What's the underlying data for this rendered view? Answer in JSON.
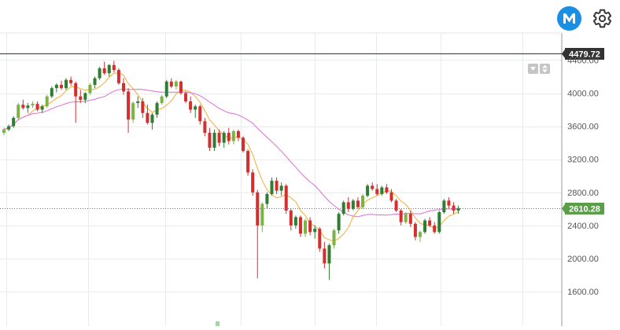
{
  "chart_data": {
    "type": "candlestick",
    "y_axis": {
      "ticks": [
        1600,
        2000,
        2400,
        2800,
        3200,
        3600,
        4000,
        4400
      ],
      "tick_labels": [
        "1600.00",
        "2000.00",
        "2400.00",
        "2800.00",
        "3200.00",
        "3600.00",
        "4000.00",
        "4400.00"
      ],
      "ylim": [
        1540,
        4640
      ],
      "position": "right"
    },
    "grid": true,
    "price_lines": [
      {
        "label": "4479.72",
        "value": 4479.72,
        "style": "solid",
        "color": "#333333",
        "badge_color": "#333333"
      },
      {
        "label": "2610.28",
        "value": 2610.28,
        "style": "dotted",
        "color": "#3c9a3c",
        "badge_color": "#5a9e48"
      }
    ],
    "colors": {
      "up": "#2e7d32",
      "up_light": "#7cb342",
      "down": "#d32f2f",
      "ma_fast": "#f5b342",
      "ma_slow": "#e07ad8"
    },
    "candles": [
      [
        3520,
        3580,
        3490,
        3560
      ],
      [
        3560,
        3620,
        3540,
        3600
      ],
      [
        3600,
        3720,
        3580,
        3700
      ],
      [
        3700,
        3880,
        3680,
        3860
      ],
      [
        3860,
        3920,
        3800,
        3820
      ],
      [
        3820,
        3880,
        3760,
        3850
      ],
      [
        3850,
        3900,
        3820,
        3870
      ],
      [
        3870,
        3900,
        3780,
        3800
      ],
      [
        3800,
        3860,
        3760,
        3840
      ],
      [
        3840,
        3980,
        3820,
        3960
      ],
      [
        3960,
        4080,
        3940,
        4060
      ],
      [
        4060,
        4120,
        4010,
        4100
      ],
      [
        4100,
        4150,
        4040,
        4060
      ],
      [
        4060,
        4180,
        4040,
        4160
      ],
      [
        4160,
        4200,
        4090,
        4120
      ],
      [
        4120,
        4140,
        3640,
        3960
      ],
      [
        3960,
        4040,
        3880,
        3920
      ],
      [
        3920,
        4010,
        3880,
        4000
      ],
      [
        4000,
        4120,
        3980,
        4100
      ],
      [
        4100,
        4200,
        4060,
        4180
      ],
      [
        4180,
        4320,
        4160,
        4300
      ],
      [
        4300,
        4380,
        4220,
        4240
      ],
      [
        4240,
        4350,
        4200,
        4340
      ],
      [
        4340,
        4390,
        4250,
        4280
      ],
      [
        4280,
        4300,
        4100,
        4120
      ],
      [
        4120,
        4180,
        3980,
        4020
      ],
      [
        4020,
        4060,
        3520,
        3680
      ],
      [
        3680,
        3900,
        3640,
        3880
      ],
      [
        3880,
        3960,
        3820,
        3900
      ],
      [
        3900,
        3940,
        3700,
        3760
      ],
      [
        3760,
        3860,
        3620,
        3640
      ],
      [
        3640,
        3760,
        3560,
        3740
      ],
      [
        3740,
        3900,
        3700,
        3880
      ],
      [
        3880,
        3980,
        3860,
        3960
      ],
      [
        3960,
        4160,
        3940,
        4140
      ],
      [
        4140,
        4180,
        4060,
        4080
      ],
      [
        4080,
        4160,
        4040,
        4140
      ],
      [
        4140,
        4150,
        3980,
        4000
      ],
      [
        4000,
        4020,
        3880,
        3900
      ],
      [
        3900,
        3960,
        3760,
        3800
      ],
      [
        3800,
        3860,
        3700,
        3840
      ],
      [
        3840,
        3860,
        3620,
        3660
      ],
      [
        3660,
        3700,
        3480,
        3520
      ],
      [
        3520,
        3580,
        3300,
        3340
      ],
      [
        3340,
        3560,
        3300,
        3520
      ],
      [
        3520,
        3560,
        3360,
        3400
      ],
      [
        3400,
        3540,
        3340,
        3520
      ],
      [
        3520,
        3580,
        3380,
        3420
      ],
      [
        3420,
        3560,
        3380,
        3540
      ],
      [
        3540,
        3560,
        3420,
        3460
      ],
      [
        3460,
        3480,
        3280,
        3300
      ],
      [
        3300,
        3320,
        3000,
        3040
      ],
      [
        3040,
        3080,
        2760,
        2800
      ],
      [
        2800,
        2830,
        1760,
        2400
      ],
      [
        2400,
        2680,
        2320,
        2660
      ],
      [
        2660,
        2800,
        2600,
        2780
      ],
      [
        2780,
        2980,
        2760,
        2940
      ],
      [
        2940,
        2980,
        2780,
        2820
      ],
      [
        2820,
        2920,
        2760,
        2880
      ],
      [
        2880,
        2900,
        2540,
        2580
      ],
      [
        2580,
        2600,
        2340,
        2400
      ],
      [
        2400,
        2520,
        2360,
        2500
      ],
      [
        2500,
        2520,
        2260,
        2300
      ],
      [
        2300,
        2480,
        2260,
        2460
      ],
      [
        2460,
        2500,
        2280,
        2320
      ],
      [
        2320,
        2400,
        2240,
        2360
      ],
      [
        2360,
        2380,
        2080,
        2120
      ],
      [
        2120,
        2200,
        1880,
        1940
      ],
      [
        1940,
        2180,
        1740,
        2160
      ],
      [
        2160,
        2360,
        2120,
        2340
      ],
      [
        2340,
        2560,
        2300,
        2540
      ],
      [
        2540,
        2700,
        2520,
        2680
      ],
      [
        2680,
        2740,
        2560,
        2600
      ],
      [
        2600,
        2720,
        2580,
        2700
      ],
      [
        2700,
        2740,
        2600,
        2620
      ],
      [
        2620,
        2780,
        2600,
        2760
      ],
      [
        2760,
        2900,
        2740,
        2880
      ],
      [
        2880,
        2920,
        2820,
        2840
      ],
      [
        2840,
        2900,
        2760,
        2780
      ],
      [
        2780,
        2880,
        2760,
        2860
      ],
      [
        2860,
        2900,
        2780,
        2800
      ],
      [
        2800,
        2840,
        2680,
        2700
      ],
      [
        2700,
        2720,
        2560,
        2580
      ],
      [
        2580,
        2600,
        2400,
        2440
      ],
      [
        2440,
        2560,
        2420,
        2540
      ],
      [
        2540,
        2580,
        2380,
        2420
      ],
      [
        2420,
        2440,
        2220,
        2260
      ],
      [
        2260,
        2340,
        2200,
        2320
      ],
      [
        2320,
        2480,
        2300,
        2460
      ],
      [
        2460,
        2500,
        2380,
        2400
      ],
      [
        2400,
        2440,
        2300,
        2320
      ],
      [
        2320,
        2580,
        2300,
        2560
      ],
      [
        2560,
        2720,
        2540,
        2700
      ],
      [
        2700,
        2740,
        2600,
        2640
      ],
      [
        2640,
        2680,
        2540,
        2580
      ],
      [
        2580,
        2640,
        2540,
        2610
      ]
    ]
  },
  "toolbar": {
    "logo_icon": "m-logo-icon",
    "settings_icon": "gear-icon"
  },
  "scroll_buttons": {
    "down_icon": "triangle-down-icon",
    "updown_icon": "up-down-arrows-icon"
  }
}
